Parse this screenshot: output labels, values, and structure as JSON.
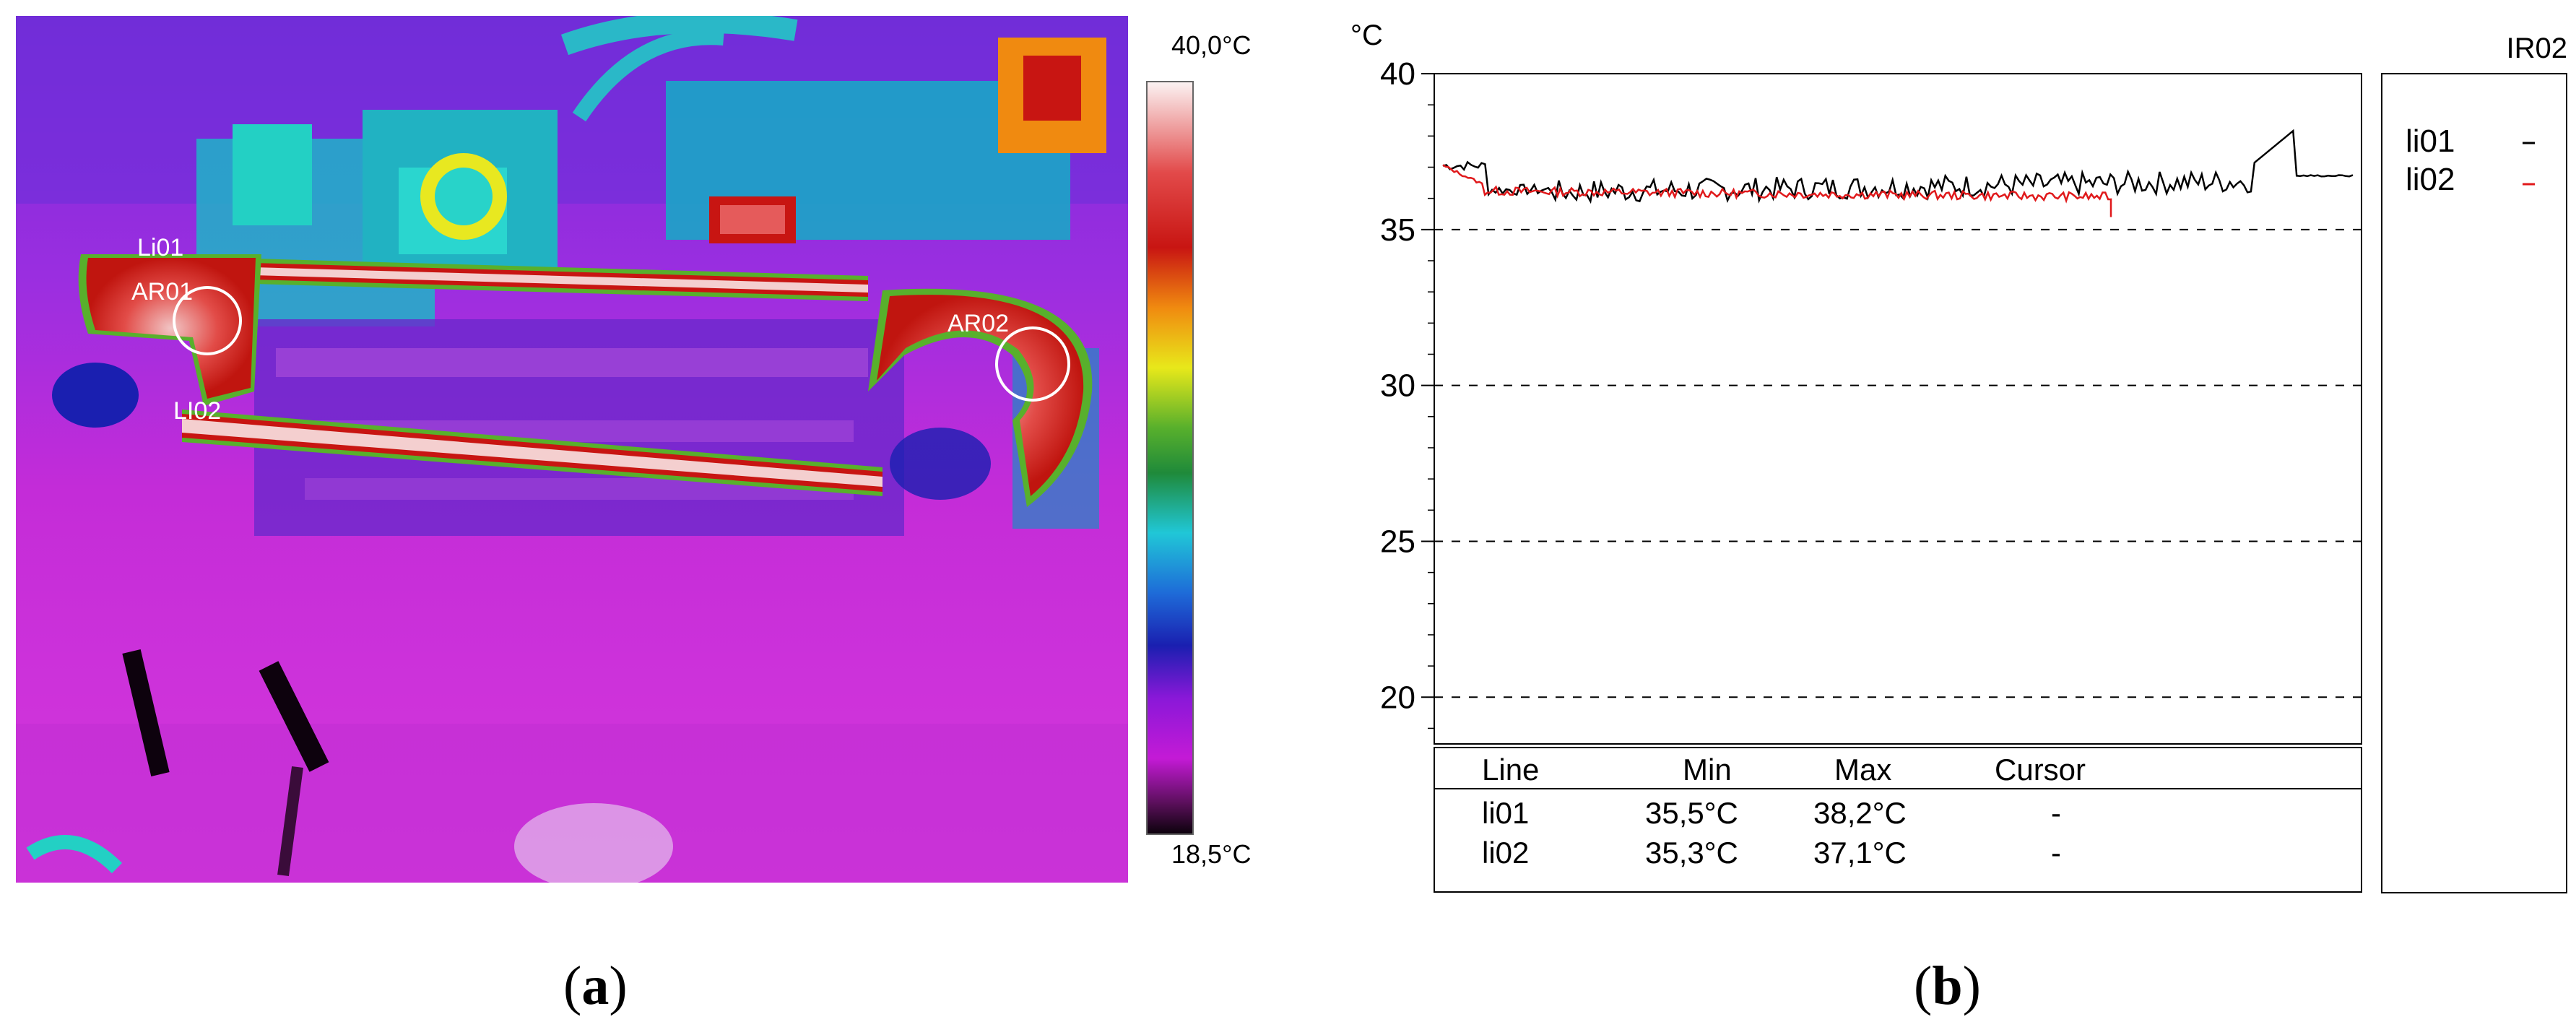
{
  "thermal": {
    "scale_max": "40,0°C",
    "scale_min": "18,5°C",
    "regions": [
      {
        "label": "Li01"
      },
      {
        "label": "AR01"
      },
      {
        "label": "AR02"
      },
      {
        "label": "LI02"
      }
    ]
  },
  "panel_labels": {
    "a": "a",
    "b": "b"
  },
  "chart_data": {
    "type": "line",
    "title": "IR02",
    "ylabel": "°C",
    "ylim": [
      18.5,
      40
    ],
    "yticks": [
      20,
      25,
      30,
      35,
      40
    ],
    "grid": "horizontal-dashed",
    "legend_position": "right",
    "series": [
      {
        "name": "li01",
        "color": "#000000"
      },
      {
        "name": "li02",
        "color": "#e0191b"
      }
    ],
    "table": {
      "headers": [
        "Line",
        "Min",
        "Max",
        "Cursor"
      ],
      "rows": [
        [
          "li01",
          "35,5°C",
          "38,2°C",
          "-"
        ],
        [
          "li02",
          "35,3°C",
          "37,1°C",
          "-"
        ]
      ]
    }
  }
}
